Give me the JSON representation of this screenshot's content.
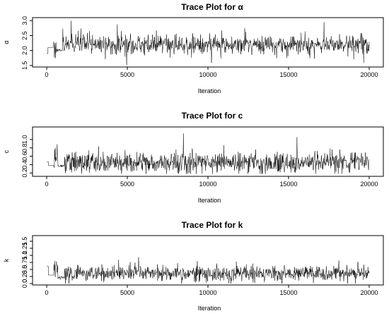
{
  "chart_data": [
    {
      "type": "line",
      "title": "Trace Plot for α",
      "xlabel": "Iteration",
      "ylabel": "α",
      "xlim": [
        0,
        20000
      ],
      "ylim": [
        1.45,
        3.1
      ],
      "xticks": [
        0,
        5000,
        10000,
        15000,
        20000
      ],
      "xtick_labels": [
        "0",
        "5000",
        "10000",
        "15000",
        "20000"
      ],
      "yticks": [
        1.5,
        2.0,
        2.5,
        3.0
      ],
      "ytick_labels": [
        "1.5",
        "2.0",
        "2.5",
        "3.0"
      ],
      "grid": false,
      "series": [
        {
          "iterations": [
            0,
            20000
          ],
          "segments": [
            {
              "from": 0,
              "to": 80,
              "level": 1.9,
              "spread": 0.0
            },
            {
              "from": 80,
              "to": 400,
              "level": 2.1,
              "spread": 0.0
            },
            {
              "from": 400,
              "to": 650,
              "level": 2.15,
              "spread": 0.4
            },
            {
              "from": 650,
              "to": 1000,
              "level": 2.0,
              "spread": 0.05
            },
            {
              "from": 1000,
              "to": 20000,
              "level": 2.2,
              "spread": 0.35
            }
          ],
          "observed_min": 1.52,
          "observed_max": 3.0
        }
      ]
    },
    {
      "type": "line",
      "title": "Trace Plot for c",
      "xlabel": "Iteration",
      "ylabel": "c",
      "xlim": [
        0,
        20000
      ],
      "ylim": [
        0.12,
        1.3
      ],
      "xticks": [
        0,
        5000,
        10000,
        15000,
        20000
      ],
      "xtick_labels": [
        "0",
        "5000",
        "10000",
        "15000",
        "20000"
      ],
      "yticks": [
        0.2,
        0.6,
        1.0
      ],
      "ytick_labels": [
        "0.2",
        "0.6",
        "1.0"
      ],
      "yticks_minor": [
        0.4,
        0.8
      ],
      "ytick_labels_minor": [
        "0.4",
        "0.8"
      ],
      "grid": false,
      "series": [
        {
          "iterations": [
            0,
            20000
          ],
          "segments": [
            {
              "from": 0,
              "to": 100,
              "level": 0.47,
              "spread": 0.0
            },
            {
              "from": 100,
              "to": 450,
              "level": 0.38,
              "spread": 0.0
            },
            {
              "from": 450,
              "to": 700,
              "level": 0.5,
              "spread": 0.3
            },
            {
              "from": 700,
              "to": 1100,
              "level": 0.38,
              "spread": 0.05
            },
            {
              "from": 1100,
              "to": 20000,
              "level": 0.45,
              "spread": 0.28
            }
          ],
          "observed_min": 0.18,
          "observed_max": 1.25
        }
      ]
    },
    {
      "type": "line",
      "title": "Trace Plot for k",
      "xlabel": "Iteration",
      "ylabel": "k",
      "xlim": [
        0,
        20000
      ],
      "ylim": [
        -0.05,
        1.7
      ],
      "xticks": [
        0,
        5000,
        10000,
        15000,
        20000
      ],
      "xtick_labels": [
        "0",
        "5000",
        "10000",
        "15000",
        "20000"
      ],
      "yticks": [
        0.0,
        0.5,
        1.0,
        1.5
      ],
      "ytick_labels": [
        "0.0",
        "0.5",
        "1.0",
        "1.5"
      ],
      "yticks_minor": [
        0.25,
        0.75,
        1.25
      ],
      "ytick_labels_minor": [
        "0.25",
        "0.75",
        "1.25"
      ],
      "grid": false,
      "series": [
        {
          "iterations": [
            0,
            20000
          ],
          "segments": [
            {
              "from": 0,
              "to": 100,
              "level": 0.62,
              "spread": 0.0
            },
            {
              "from": 100,
              "to": 450,
              "level": 0.3,
              "spread": 0.0
            },
            {
              "from": 450,
              "to": 700,
              "level": 0.55,
              "spread": 0.35
            },
            {
              "from": 700,
              "to": 1100,
              "level": 0.22,
              "spread": 0.05
            },
            {
              "from": 1100,
              "to": 20000,
              "level": 0.35,
              "spread": 0.3
            }
          ],
          "observed_min": 0.0,
          "observed_max": 1.62
        }
      ]
    }
  ]
}
